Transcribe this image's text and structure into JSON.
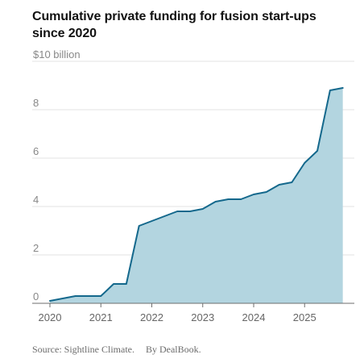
{
  "chart_data": {
    "type": "area",
    "title": "Cumulative private funding for fusion start-ups since 2020",
    "y_unit_label": "$10 billion",
    "ylim": [
      0,
      10
    ],
    "xlim": [
      2020,
      2025.85
    ],
    "y_ticks": [
      "0",
      "2",
      "4",
      "6",
      "8"
    ],
    "x_ticks": [
      "2020",
      "2021",
      "2022",
      "2023",
      "2024",
      "2025"
    ],
    "grid": true,
    "x": [
      2020.0,
      2020.5,
      2021.0,
      2021.25,
      2021.5,
      2021.75,
      2022.0,
      2022.25,
      2022.5,
      2022.75,
      2023.0,
      2023.25,
      2023.5,
      2023.75,
      2024.0,
      2024.25,
      2024.5,
      2024.75,
      2025.0,
      2025.25,
      2025.5,
      2025.75
    ],
    "y": [
      0.1,
      0.3,
      0.3,
      0.8,
      0.8,
      3.2,
      3.4,
      3.6,
      3.8,
      3.8,
      3.9,
      4.2,
      4.3,
      4.3,
      4.5,
      4.6,
      4.9,
      5.0,
      5.8,
      6.3,
      8.8,
      8.9
    ]
  },
  "footer": {
    "source": "Source: Sightline Climate.",
    "byline": "By DealBook."
  },
  "colors": {
    "line": "#14688c",
    "area": "#b3d5e0",
    "grid": "#e3e3e3",
    "axis": "#6e6e6e",
    "tick_text": "#888888"
  }
}
